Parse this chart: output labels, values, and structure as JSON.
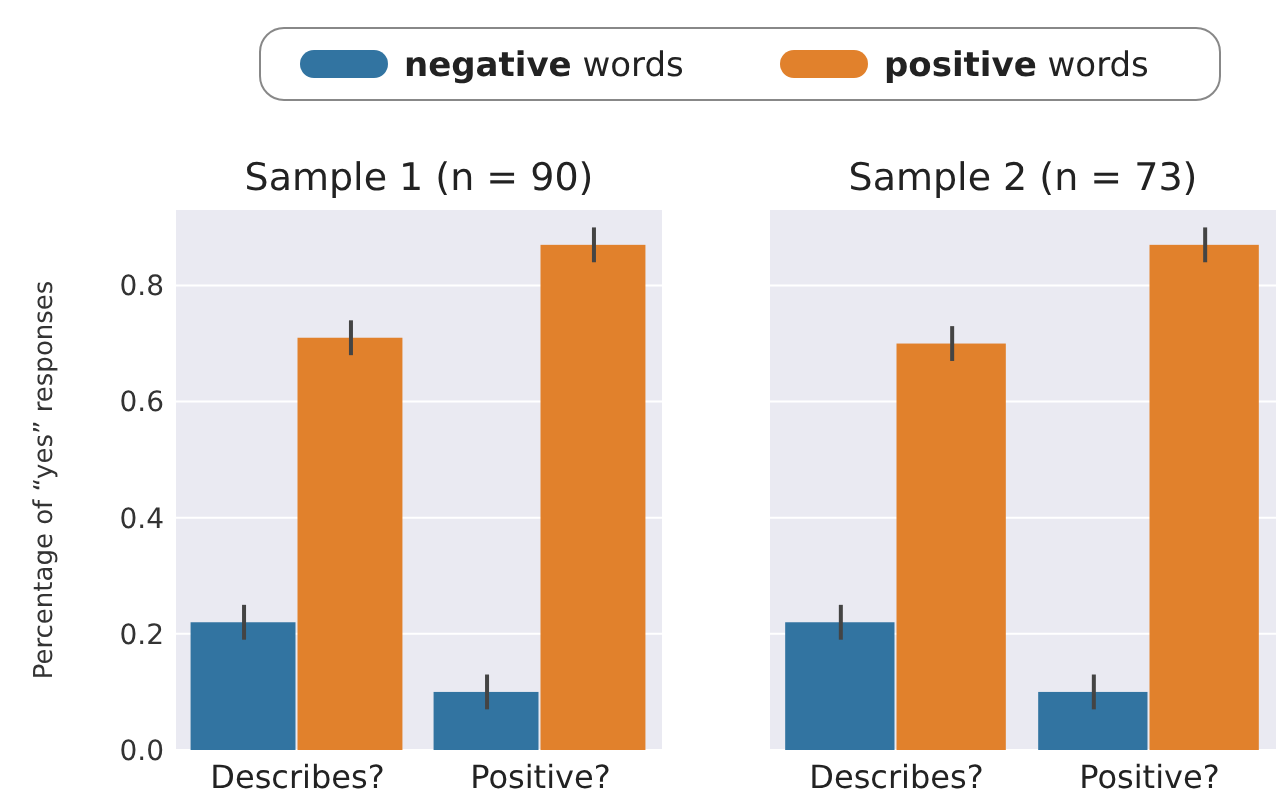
{
  "chart_data": [
    {
      "type": "bar",
      "title": "Sample 1 (n = 90)",
      "ylabel": "Percentage of “yes” responses",
      "categories": [
        "Describes?",
        "Positive?"
      ],
      "series": [
        {
          "name": "negative words",
          "color": "#3274a1",
          "values": [
            0.22,
            0.1
          ],
          "errors": [
            0.03,
            0.03
          ]
        },
        {
          "name": "positive words",
          "color": "#e1812c",
          "values": [
            0.71,
            0.87
          ],
          "errors": [
            0.03,
            0.03
          ]
        }
      ],
      "ylim": [
        0,
        0.93
      ],
      "yticks": [
        {
          "value": 0,
          "label": "0.0"
        },
        {
          "value": 0.2,
          "label": "0.2"
        },
        {
          "value": 0.4,
          "label": "0.4"
        },
        {
          "value": 0.6,
          "label": "0.6"
        },
        {
          "value": 0.8,
          "label": "0.8"
        }
      ],
      "grid": "y",
      "legend": "top"
    },
    {
      "type": "bar",
      "title": "Sample 2 (n = 73)",
      "categories": [
        "Describes?",
        "Positive?"
      ],
      "series": [
        {
          "color": "#3274a1",
          "values": [
            0.22,
            0.1
          ],
          "errors": [
            0.03,
            0.03
          ]
        },
        {
          "color": "#e1812c",
          "values": [
            0.7,
            0.87
          ],
          "errors": [
            0.03,
            0.03
          ]
        }
      ],
      "ylim": [
        0,
        0.93
      ],
      "yticks": [
        {
          "value": 0,
          "label": null
        },
        {
          "value": 0.2,
          "label": null
        },
        {
          "value": 0.4,
          "label": null
        },
        {
          "value": 0.6,
          "label": null
        },
        {
          "value": 0.8,
          "label": null
        }
      ],
      "grid": "y",
      "tick_labels": "x"
    }
  ]
}
